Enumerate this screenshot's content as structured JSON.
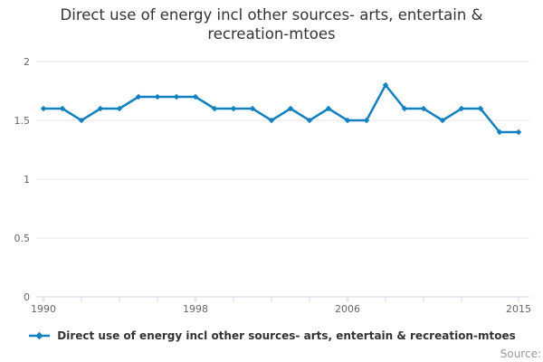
{
  "header": {
    "title": "Direct use of energy incl other sources- arts, entertain & recreation-mtoes"
  },
  "legend": {
    "label": "Direct use of energy incl other sources- arts, entertain & recreation-mtoes"
  },
  "footer": {
    "source_label": "Source:"
  },
  "chart_data": {
    "type": "line",
    "title": "Direct use of energy incl other sources- arts, entertain & recreation-mtoes",
    "xlabel": "",
    "ylabel": "",
    "x": [
      1990,
      1991,
      1992,
      1993,
      1994,
      1995,
      1996,
      1997,
      1998,
      1999,
      2000,
      2001,
      2002,
      2003,
      2004,
      2005,
      2006,
      2007,
      2008,
      2009,
      2010,
      2011,
      2012,
      2013,
      2014,
      2015
    ],
    "series": [
      {
        "name": "Direct use of energy incl other sources- arts, entertain & recreation-mtoes",
        "values": [
          1.6,
          1.6,
          1.5,
          1.6,
          1.6,
          1.7,
          1.7,
          1.7,
          1.7,
          1.6,
          1.6,
          1.6,
          1.5,
          1.6,
          1.5,
          1.6,
          1.5,
          1.5,
          1.8,
          1.6,
          1.6,
          1.5,
          1.6,
          1.6,
          1.4,
          1.4
        ]
      }
    ],
    "ylim": [
      0,
      2
    ],
    "yticks": [
      0,
      0.5,
      1,
      1.5,
      2
    ],
    "ytick_labels": [
      "0",
      "0.5",
      "1",
      "1.5",
      "2"
    ],
    "xticks": [
      1990,
      1992,
      1994,
      1996,
      1998,
      2000,
      2002,
      2004,
      2006,
      2008,
      2010,
      2012,
      2015
    ],
    "xtick_labels": [
      1990,
      1998,
      2006,
      2015
    ],
    "grid": "horizontal",
    "legend_position": "bottom",
    "colors": {
      "line": "#1380bf",
      "grid": "#e6e6e6",
      "axis": "#ccd6eb",
      "tick_text": "#666666",
      "title_text": "#333333",
      "source_text": "#999999"
    }
  }
}
